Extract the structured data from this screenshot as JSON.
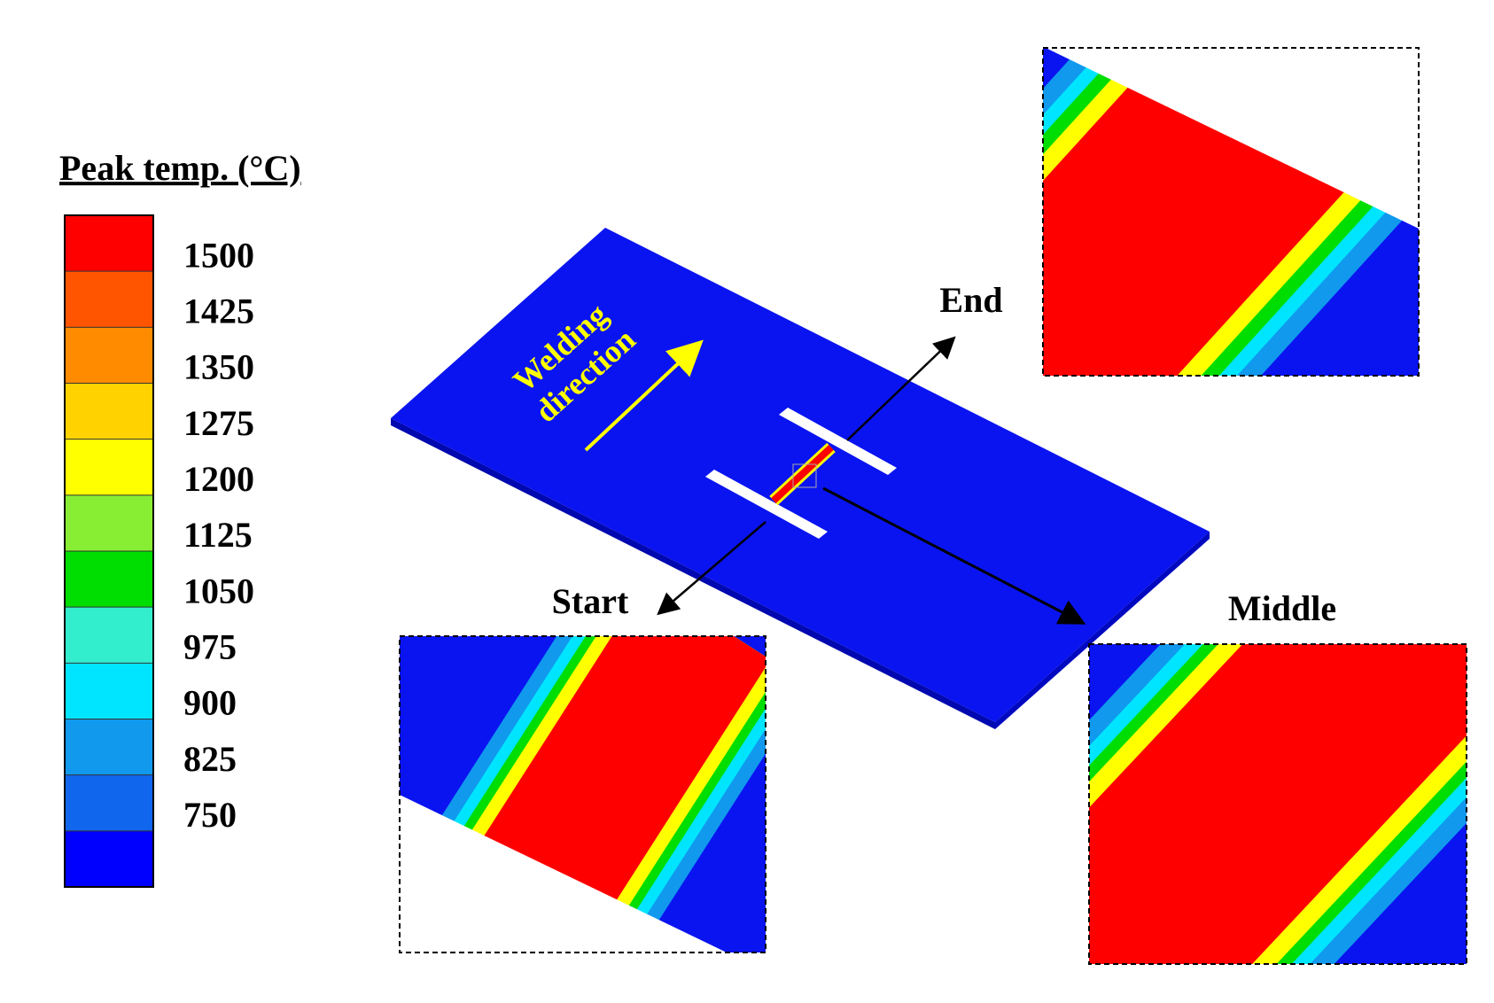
{
  "legend": {
    "title": "Peak temp. (°C)",
    "ticks": [
      1500,
      1425,
      1350,
      1275,
      1200,
      1125,
      1050,
      975,
      900,
      825,
      750
    ],
    "colors": [
      "#ff0000",
      "#ff5500",
      "#ff8c00",
      "#ffd200",
      "#ffff00",
      "#88ee33",
      "#00dd00",
      "#33eecc",
      "#00e5ff",
      "#1199ee",
      "#1166ee",
      "#0000ff"
    ]
  },
  "annotation": {
    "lines": [
      "Welding",
      "direction"
    ]
  },
  "labels": {
    "end": "End",
    "start": "Start",
    "middle": "Middle"
  }
}
